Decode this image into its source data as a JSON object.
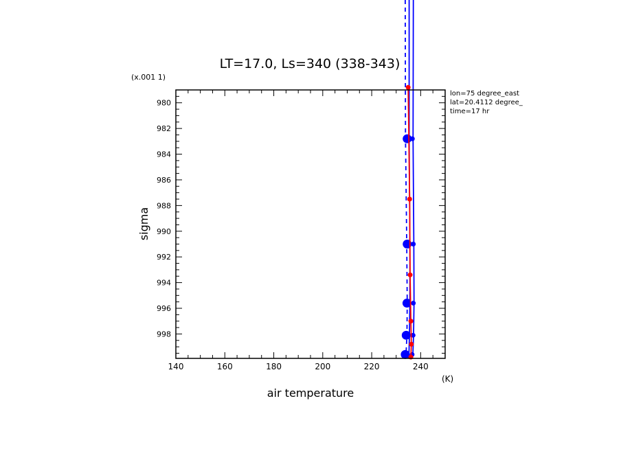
{
  "chart_data": {
    "type": "line",
    "title": "LT=17.0, Ls=340 (338-343)",
    "xlabel": "air temperature",
    "xunit": "(K)",
    "ylabel": "sigma",
    "yunit": "(x.001 1)",
    "xlim": [
      140,
      250
    ],
    "ylim": [
      979,
      999.9
    ],
    "y_inverted": true,
    "x_ticks": [
      140,
      160,
      180,
      200,
      220,
      240
    ],
    "y_ticks": [
      980,
      982,
      984,
      986,
      988,
      990,
      992,
      994,
      996,
      998
    ],
    "info": [
      "lon=75 degree_east",
      "lat=20.4112 degree_",
      "time=17 hr"
    ],
    "colors": {
      "blue": "#0000ff",
      "red": "#ff0000"
    },
    "series": [
      {
        "color": "#0000ff",
        "style": "solid",
        "marker": "none",
        "points": [
          [
            235.3,
            972
          ],
          [
            235.3,
            982.8
          ],
          [
            235.6,
            991.0
          ],
          [
            235.6,
            995.6
          ],
          [
            235.4,
            998.1
          ],
          [
            235.2,
            999.6
          ]
        ]
      },
      {
        "color": "#0000ff",
        "style": "dashed",
        "marker": "none",
        "points": [
          [
            233.7,
            972
          ],
          [
            233.8,
            982.8
          ],
          [
            234.3,
            991.0
          ],
          [
            234.5,
            995.6
          ],
          [
            234.4,
            998.1
          ],
          [
            234.0,
            999.6
          ]
        ]
      },
      {
        "color": "#0000ff",
        "style": "solid",
        "marker": "none",
        "points": [
          [
            237.0,
            972
          ],
          [
            236.9,
            982.8
          ],
          [
            237.2,
            991.0
          ],
          [
            237.3,
            995.6
          ],
          [
            237.1,
            998.1
          ],
          [
            236.8,
            999.6
          ]
        ]
      },
      {
        "color": "#0000ff",
        "style": "none",
        "marker": "large-dot",
        "points": [
          [
            234.5,
            982.8
          ],
          [
            234.5,
            991.0
          ],
          [
            234.4,
            995.6
          ],
          [
            234.1,
            998.1
          ],
          [
            233.7,
            999.6
          ]
        ]
      },
      {
        "color": "#0000ff",
        "style": "none",
        "marker": "small-dot",
        "points": [
          [
            236.6,
            982.8
          ],
          [
            237.0,
            991.0
          ],
          [
            237.0,
            995.6
          ],
          [
            236.9,
            998.1
          ],
          [
            236.5,
            999.6
          ]
        ]
      },
      {
        "color": "#ff0000",
        "style": "solid",
        "marker": "small-dot",
        "points": [
          [
            234.9,
            978.8
          ],
          [
            235.5,
            987.5
          ],
          [
            235.7,
            993.4
          ],
          [
            236.0,
            997.0
          ],
          [
            236.2,
            998.8
          ],
          [
            236.0,
            999.8
          ]
        ]
      }
    ]
  }
}
